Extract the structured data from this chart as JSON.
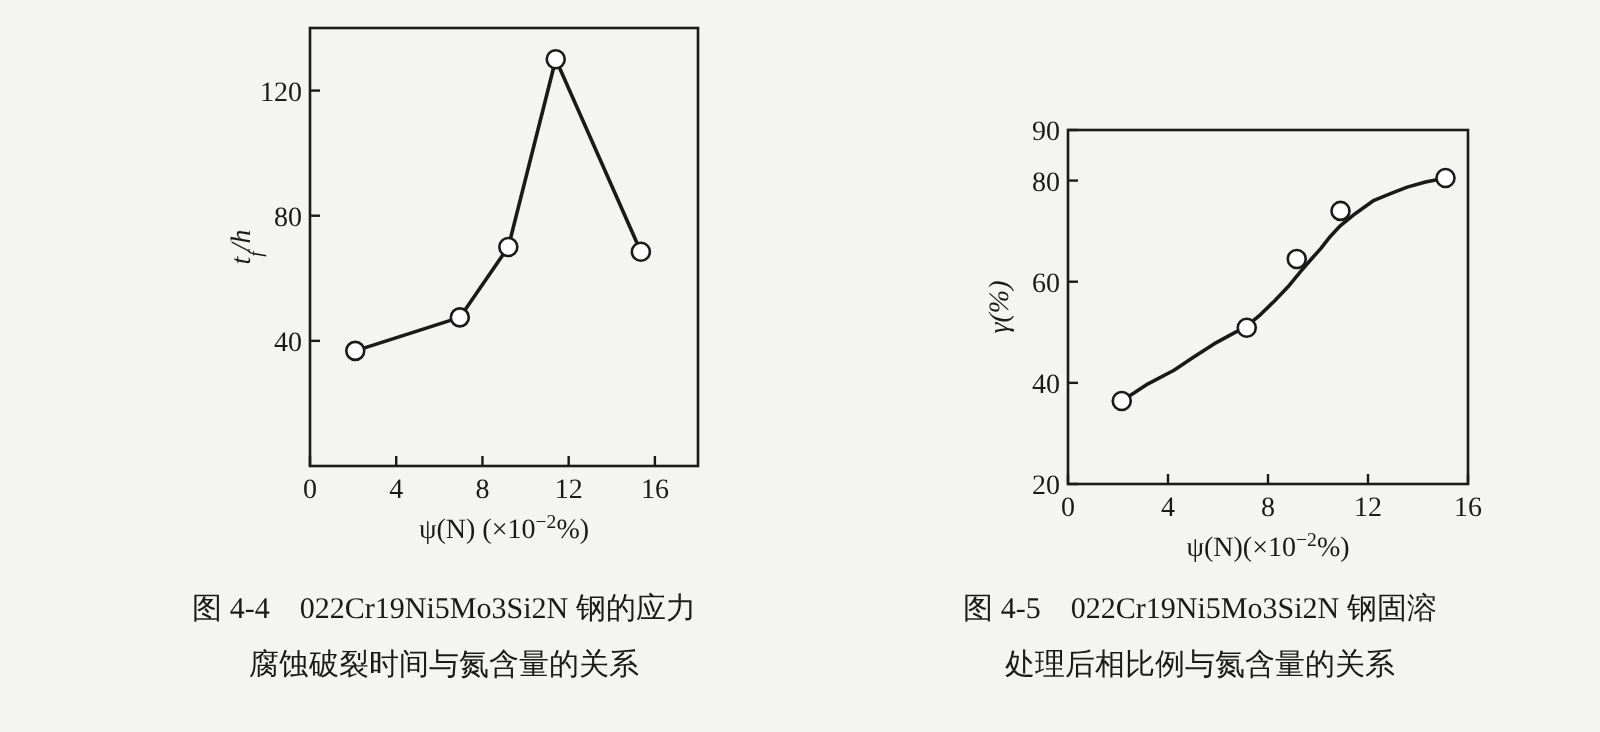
{
  "chart_data": [
    {
      "type": "line",
      "title": "图 4-4　022Cr19Ni5Mo3Si2N 钢的应力腐蚀破裂时间与氮含量的关系",
      "xlabel": "ψ(N) (×10$^{−2}$%)",
      "ylabel": "t$_{f}$/h",
      "xlim": [
        0,
        18
      ],
      "ylim": [
        0,
        140
      ],
      "xticks": [
        0,
        4,
        8,
        12,
        16
      ],
      "yticks": [
        40,
        80,
        120
      ],
      "grid": false,
      "series": [
        {
          "type": "line",
          "color": "#1a1a1a",
          "marker": "circle",
          "x": [
            2.1,
            6.95,
            9.2,
            11.4,
            15.35
          ],
          "values": [
            36.8,
            47.5,
            70,
            130,
            68.5
          ]
        }
      ]
    },
    {
      "type": "line",
      "title": "图 4-5　022Cr19Ni5Mo3Si2N 钢固溶处理后相比例与氮含量的关系",
      "xlabel": "ψ(N)(×10$^{−2}$%)",
      "ylabel": "γ(%)",
      "xlim": [
        0,
        16
      ],
      "ylim": [
        20,
        90
      ],
      "xticks": [
        0,
        4,
        8,
        12,
        16
      ],
      "yticks": [
        20,
        40,
        60,
        80,
        90
      ],
      "grid": false,
      "series": [
        {
          "type": "scatter",
          "color": "#1a1a1a",
          "marker": "circle",
          "x": [
            2.15,
            7.15,
            9.15,
            10.9,
            15.1
          ],
          "values": [
            36.4,
            50.9,
            64.5,
            74,
            80.5
          ]
        },
        {
          "type": "line",
          "color": "#1a1a1a",
          "marker": "none",
          "x": [
            2.15,
            3.2,
            4.24,
            5.0,
            5.84,
            6.5,
            7.15,
            7.7,
            8.24,
            8.8,
            9.3,
            9.7,
            10.1,
            10.5,
            10.9,
            11.5,
            12.24,
            13.0,
            13.57,
            14.3,
            15.1
          ],
          "values": [
            36.4,
            39.8,
            42.5,
            45,
            47.7,
            49.5,
            51.2,
            53.5,
            56.1,
            59,
            62,
            64.3,
            66.5,
            69,
            71.1,
            73.5,
            76.1,
            77.6,
            78.7,
            79.7,
            80.5
          ]
        }
      ]
    }
  ]
}
